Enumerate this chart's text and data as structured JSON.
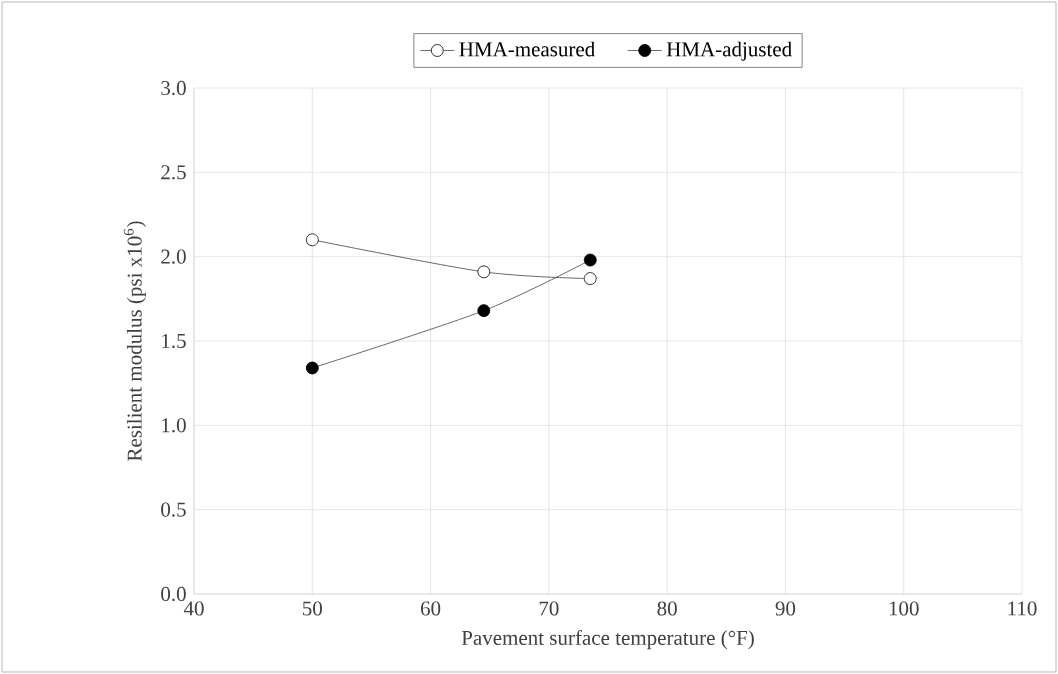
{
  "chart_data": {
    "type": "line",
    "xlabel": "Pavement surface temperature (°F)",
    "ylabel": "Resilient modulus (psi x10$^{6}$)",
    "x": [
      50,
      64.5,
      73.5
    ],
    "series": [
      {
        "name": "HMA-measured",
        "color": "#ffffff",
        "values": [
          2.1,
          1.91,
          1.87
        ]
      },
      {
        "name": "HMA-adjusted",
        "color": "#000000",
        "values": [
          1.34,
          1.68,
          1.98
        ]
      }
    ],
    "xlim": [
      40,
      110
    ],
    "xticks": [
      40,
      50,
      60,
      70,
      80,
      90,
      100,
      110
    ],
    "ylim": [
      0,
      3
    ],
    "yticks": [
      {
        "value": 0,
        "label": "0.0"
      },
      {
        "value": 0.5,
        "label": "0.5"
      },
      {
        "value": 1,
        "label": "1.0"
      },
      {
        "value": 1.5,
        "label": "1.5"
      },
      {
        "value": 2,
        "label": "2.0"
      },
      {
        "value": 2.5,
        "label": "2.5"
      },
      {
        "value": 3,
        "label": "3.0"
      }
    ],
    "grid": true,
    "legend": "top",
    "marker": "circle",
    "line_style": "solid"
  }
}
